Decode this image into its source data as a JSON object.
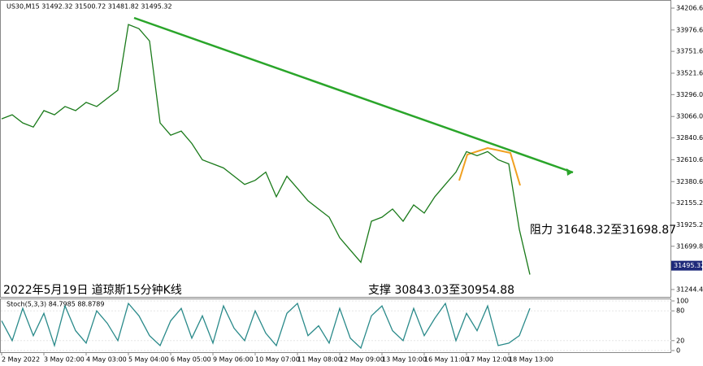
{
  "chart_data": [
    {
      "type": "line",
      "title": "US30,M15  31492.32 31500.72 31481.82 31495.32",
      "categories": [
        "2 May 2022",
        null,
        null,
        null,
        "3 May 02:00",
        null,
        null,
        null,
        "4 May 03:00",
        null,
        null,
        null,
        "5 May 04:00",
        null,
        null,
        null,
        "6 May 05:00",
        null,
        null,
        null,
        "9 May 06:00",
        null,
        null,
        null,
        "10 May 07:00",
        null,
        null,
        null,
        "11 May 08:00",
        null,
        null,
        null,
        "12 May 09:00",
        null,
        null,
        null,
        "13 May 10:00",
        null,
        null,
        null,
        "16 May 11:00",
        null,
        null,
        null,
        "17 May 12:00",
        null,
        null,
        null,
        "18 May 13:00",
        null,
        null
      ],
      "values": [
        33041,
        33084,
        32998,
        32955,
        33128,
        33084,
        33171,
        33128,
        33214,
        33171,
        33257,
        33343,
        34034,
        33990,
        33861,
        32998,
        32869,
        32912,
        32782,
        32610,
        32567,
        32524,
        32437,
        32351,
        32394,
        32480,
        32221,
        32437,
        32308,
        32178,
        32092,
        32006,
        31790,
        31660,
        31531,
        31963,
        32006,
        32092,
        31963,
        32135,
        32049,
        32221,
        32351,
        32480,
        32696,
        32653,
        32696,
        32610,
        32567,
        31877,
        31402
      ],
      "color": "#1a7a1a",
      "ylim": [
        31167,
        34275
      ],
      "yticks": [
        {
          "value": 34206.6,
          "label": "34206.60"
        },
        {
          "value": 33976.6,
          "label": "33976.60"
        },
        {
          "value": 33751.6,
          "label": "33751.60"
        },
        {
          "value": 33521.6,
          "label": "33521.60"
        },
        {
          "value": 33296.0,
          "label": "33296.00"
        },
        {
          "value": 33066.0,
          "label": "33066.00"
        },
        {
          "value": 32840.6,
          "label": "32840.60"
        },
        {
          "value": 32610.6,
          "label": "32610.60"
        },
        {
          "value": 32380.6,
          "label": "32380.60"
        },
        {
          "value": 32155.2,
          "label": "32155.20"
        },
        {
          "value": 31925.2,
          "label": "31925.20"
        },
        {
          "value": 31699.8,
          "label": "31699.80"
        },
        {
          "value": 31244.4,
          "label": "31244.40"
        }
      ],
      "last_price": 31495.32,
      "annotations": [
        "阻力 31648.32至31698.87",
        "支撑 30843.03至30954.88",
        "2022年5月19日 道琼斯15分钟K线"
      ]
    },
    {
      "type": "line",
      "title": "Stoch(5,3,3) 84.7985 88.8789",
      "values": [
        60,
        20,
        85,
        30,
        75,
        10,
        90,
        40,
        15,
        80,
        55,
        20,
        95,
        70,
        30,
        10,
        60,
        85,
        25,
        70,
        15,
        90,
        45,
        20,
        80,
        35,
        10,
        75,
        95,
        30,
        50,
        15,
        85,
        25,
        5,
        70,
        90,
        40,
        20,
        85,
        30,
        65,
        95,
        20,
        75,
        40,
        90,
        10,
        15,
        30,
        85
      ],
      "color": "#2a8a8a",
      "ylim": [
        0,
        100
      ],
      "yticks": [
        100,
        80,
        20,
        0
      ]
    }
  ]
}
